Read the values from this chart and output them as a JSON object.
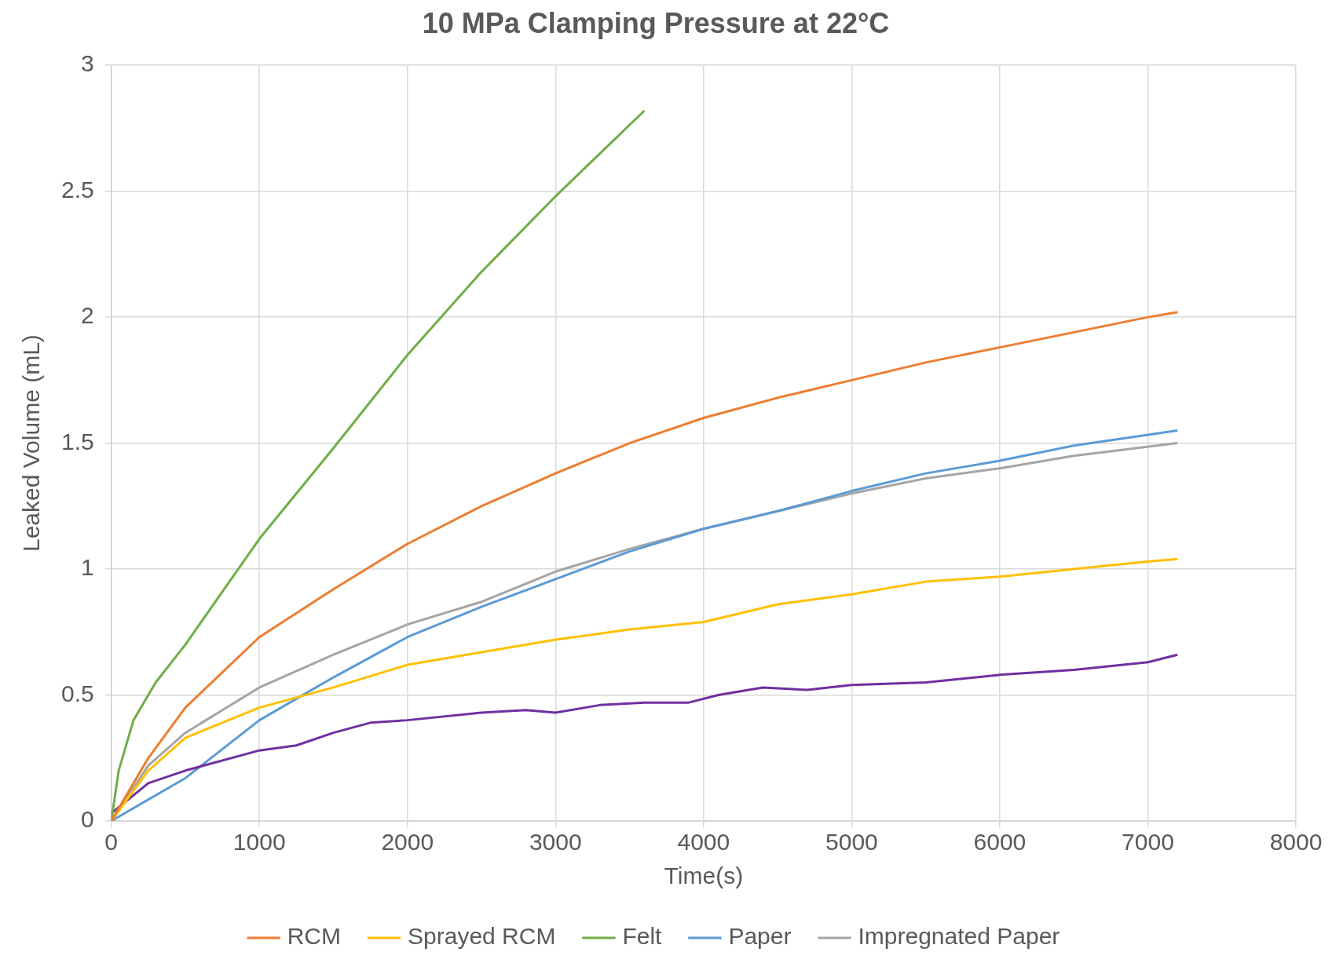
{
  "chart_data": {
    "type": "line",
    "title": "10 MPa Clamping Pressure at 22°C",
    "xlabel": "Time(s)",
    "ylabel": "Leaked Volume (mL)",
    "xlim": [
      0,
      8000
    ],
    "xticks": [
      0,
      1000,
      2000,
      3000,
      4000,
      5000,
      6000,
      7000,
      8000
    ],
    "ylim": [
      0,
      3
    ],
    "yticks": [
      0,
      0.5,
      1,
      1.5,
      2,
      2.5,
      3
    ],
    "grid": true,
    "legend": "bottom",
    "marker": "none",
    "line_style": "solid",
    "series": [
      {
        "name": "RCM",
        "color": "#ed7d31",
        "x": [
          0,
          250,
          500,
          1000,
          1500,
          2000,
          2500,
          3000,
          3500,
          4000,
          4500,
          5000,
          5500,
          6000,
          6500,
          7000,
          7200
        ],
        "values": [
          0,
          0.25,
          0.45,
          0.73,
          0.92,
          1.1,
          1.25,
          1.38,
          1.5,
          1.6,
          1.68,
          1.75,
          1.82,
          1.88,
          1.94,
          2.0,
          2.02
        ]
      },
      {
        "name": "Sprayed RCM",
        "color": "#ffc000",
        "x": [
          0,
          250,
          500,
          1000,
          1500,
          2000,
          2500,
          3000,
          3500,
          4000,
          4500,
          5000,
          5500,
          6000,
          6500,
          7000,
          7200
        ],
        "values": [
          0,
          0.2,
          0.33,
          0.45,
          0.53,
          0.62,
          0.67,
          0.72,
          0.76,
          0.79,
          0.86,
          0.9,
          0.95,
          0.97,
          1.0,
          1.03,
          1.04
        ]
      },
      {
        "name": "Felt",
        "color": "#70ad47",
        "x": [
          0,
          50,
          150,
          300,
          500,
          1000,
          1500,
          2000,
          2500,
          3000,
          3600
        ],
        "values": [
          0,
          0.2,
          0.4,
          0.55,
          0.7,
          1.12,
          1.48,
          1.85,
          2.18,
          2.48,
          2.82
        ]
      },
      {
        "color": "#7030a0",
        "x": [
          0,
          250,
          500,
          1000,
          1250,
          1500,
          1750,
          2000,
          2500,
          2800,
          3000,
          3300,
          3600,
          3900,
          4100,
          4400,
          4700,
          5000,
          5500,
          6000,
          6500,
          7000,
          7200
        ],
        "values": [
          0.03,
          0.15,
          0.2,
          0.28,
          0.3,
          0.35,
          0.39,
          0.4,
          0.43,
          0.44,
          0.43,
          0.46,
          0.47,
          0.47,
          0.5,
          0.53,
          0.52,
          0.54,
          0.55,
          0.58,
          0.6,
          0.63,
          0.66
        ]
      },
      {
        "name": "Paper",
        "color": "#5b9bd5",
        "x": [
          0,
          500,
          1000,
          1500,
          2000,
          2500,
          3000,
          3500,
          4000,
          4500,
          5000,
          5500,
          6000,
          6500,
          7200
        ],
        "values": [
          0,
          0.17,
          0.4,
          0.57,
          0.73,
          0.85,
          0.96,
          1.07,
          1.16,
          1.23,
          1.31,
          1.38,
          1.43,
          1.49,
          1.55
        ]
      },
      {
        "name": "Impregnated Paper",
        "color": "#a5a5a5",
        "x": [
          0,
          250,
          500,
          1000,
          1500,
          2000,
          2500,
          3000,
          3500,
          4000,
          4500,
          5000,
          5500,
          6000,
          6500,
          7200
        ],
        "values": [
          0,
          0.22,
          0.35,
          0.53,
          0.66,
          0.78,
          0.87,
          0.99,
          1.08,
          1.16,
          1.23,
          1.3,
          1.36,
          1.4,
          1.45,
          1.5
        ]
      }
    ]
  }
}
